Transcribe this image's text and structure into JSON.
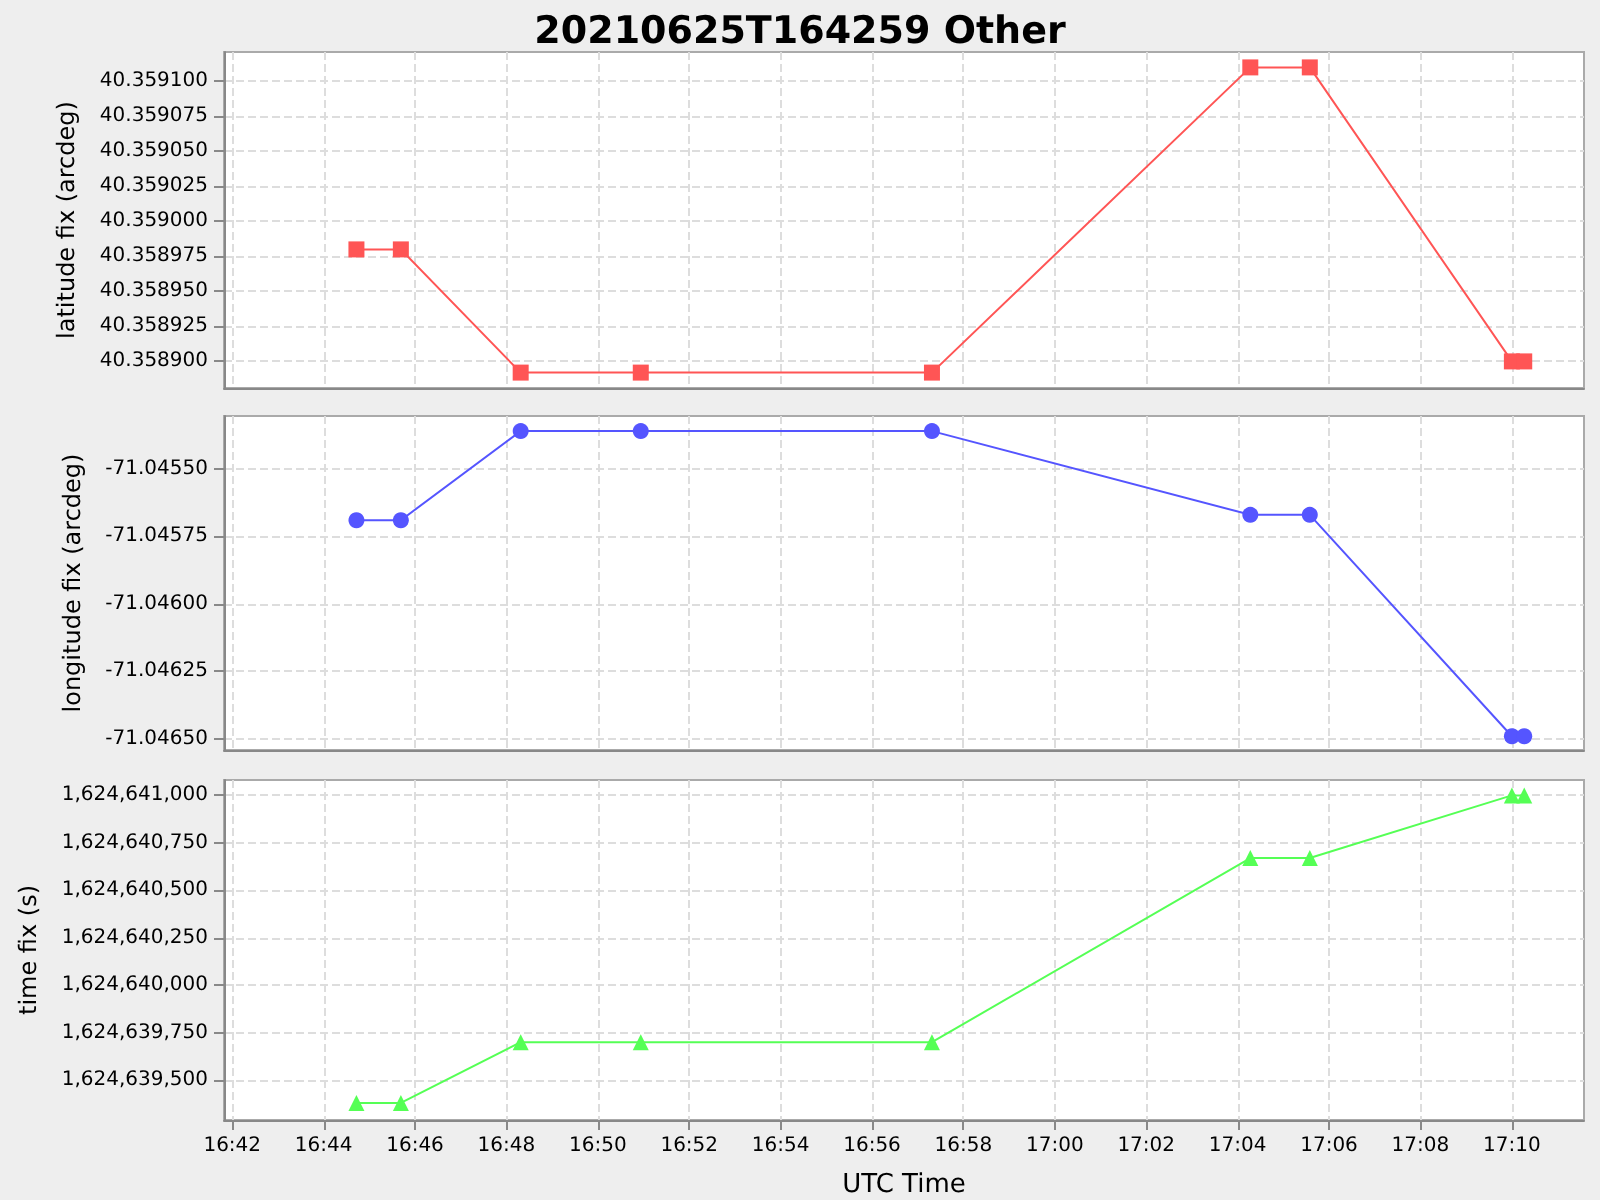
{
  "chart_data": [
    {
      "type": "line",
      "title": "20210625T164259 Other",
      "ylabel": "latitude fix (arcdeg)",
      "x": [
        16.7453,
        16.7615,
        16.8052,
        16.849,
        16.9552,
        17.0713,
        17.093,
        17.1667,
        17.1712
      ],
      "series": [
        {
          "color": "#ff5555",
          "values": [
            40.35898,
            40.35898,
            40.358892,
            40.358892,
            40.358892,
            40.35911,
            40.35911,
            40.3589,
            40.3589
          ]
        }
      ],
      "xlim": [
        16.697,
        17.193
      ],
      "xticks": [
        {
          "value": 16.7,
          "label": null
        },
        {
          "value": 16.733333,
          "label": null
        },
        {
          "value": 16.766667,
          "label": null
        },
        {
          "value": 16.8,
          "label": null
        },
        {
          "value": 16.833333,
          "label": null
        },
        {
          "value": 16.866667,
          "label": null
        },
        {
          "value": 16.9,
          "label": null
        },
        {
          "value": 16.933333,
          "label": null
        },
        {
          "value": 16.966667,
          "label": null
        },
        {
          "value": 17,
          "label": null
        },
        {
          "value": 17.033333,
          "label": null
        },
        {
          "value": 17.066667,
          "label": null
        },
        {
          "value": 17.1,
          "label": null
        },
        {
          "value": 17.133333,
          "label": null
        },
        {
          "value": 17.166667,
          "label": null
        }
      ],
      "ylim": [
        40.358881,
        40.359121
      ],
      "yticks": [
        {
          "value": 40.3589,
          "label": "40.358900"
        },
        {
          "value": 40.358925,
          "label": "40.358925"
        },
        {
          "value": 40.35895,
          "label": "40.358950"
        },
        {
          "value": 40.358975,
          "label": "40.358975"
        },
        {
          "value": 40.359,
          "label": "40.359000"
        },
        {
          "value": 40.359025,
          "label": "40.359025"
        },
        {
          "value": 40.35905,
          "label": "40.359050"
        },
        {
          "value": 40.359075,
          "label": "40.359075"
        },
        {
          "value": 40.3591,
          "label": "40.359100"
        }
      ],
      "tick_labels": "y",
      "grid": true,
      "marker": "square",
      "line_style": "solid"
    },
    {
      "type": "line",
      "ylabel": "longitude fix (arcdeg)",
      "x": [
        16.7453,
        16.7615,
        16.8052,
        16.849,
        16.9552,
        17.0713,
        17.093,
        17.1667,
        17.1712
      ],
      "series": [
        {
          "color": "#5555ff",
          "values": [
            -71.04569,
            -71.04569,
            -71.04536,
            -71.04536,
            -71.04536,
            -71.04567,
            -71.04567,
            -71.04649,
            -71.04649
          ]
        }
      ],
      "xlim": [
        16.697,
        17.193
      ],
      "xticks": [
        {
          "value": 16.7,
          "label": null
        },
        {
          "value": 16.733333,
          "label": null
        },
        {
          "value": 16.766667,
          "label": null
        },
        {
          "value": 16.8,
          "label": null
        },
        {
          "value": 16.833333,
          "label": null
        },
        {
          "value": 16.866667,
          "label": null
        },
        {
          "value": 16.9,
          "label": null
        },
        {
          "value": 16.933333,
          "label": null
        },
        {
          "value": 16.966667,
          "label": null
        },
        {
          "value": 17,
          "label": null
        },
        {
          "value": 17.033333,
          "label": null
        },
        {
          "value": 17.066667,
          "label": null
        },
        {
          "value": 17.1,
          "label": null
        },
        {
          "value": 17.133333,
          "label": null
        },
        {
          "value": 17.166667,
          "label": null
        }
      ],
      "ylim": [
        -71.046541,
        -71.045304
      ],
      "yticks": [
        {
          "value": -71.0465,
          "label": "-71.04650"
        },
        {
          "value": -71.04625,
          "label": "-71.04625"
        },
        {
          "value": -71.046,
          "label": "-71.04600"
        },
        {
          "value": -71.04575,
          "label": "-71.04575"
        },
        {
          "value": -71.0455,
          "label": "-71.04550"
        }
      ],
      "tick_labels": "y",
      "grid": true,
      "marker": "circle",
      "line_style": "solid"
    },
    {
      "type": "line",
      "ylabel": "time fix (s)",
      "xlabel": "UTC Time",
      "x": [
        16.7453,
        16.7615,
        16.8052,
        16.849,
        16.9552,
        17.0713,
        17.093,
        17.1667,
        17.1712
      ],
      "series": [
        {
          "color": "#55ff55",
          "values": [
            1624639380,
            1624639380,
            1624639700,
            1624639700,
            1624639700,
            1624640670,
            1624640670,
            1624641000,
            1624641000
          ]
        }
      ],
      "xlim": [
        16.697,
        17.193
      ],
      "xticks": [
        {
          "value": 16.7,
          "label": "16:42"
        },
        {
          "value": 16.733333,
          "label": "16:44"
        },
        {
          "value": 16.766667,
          "label": "16:46"
        },
        {
          "value": 16.8,
          "label": "16:48"
        },
        {
          "value": 16.833333,
          "label": "16:50"
        },
        {
          "value": 16.866667,
          "label": "16:52"
        },
        {
          "value": 16.9,
          "label": "16:54"
        },
        {
          "value": 16.933333,
          "label": "16:56"
        },
        {
          "value": 16.966667,
          "label": "16:58"
        },
        {
          "value": 17,
          "label": "17:00"
        },
        {
          "value": 17.033333,
          "label": "17:02"
        },
        {
          "value": 17.066667,
          "label": "17:04"
        },
        {
          "value": 17.1,
          "label": "17:06"
        },
        {
          "value": 17.133333,
          "label": "17:08"
        },
        {
          "value": 17.166667,
          "label": "17:10"
        }
      ],
      "ylim": [
        1624639290,
        1624641081
      ],
      "yticks": [
        {
          "value": 1624639500,
          "label": "1,624,639,500"
        },
        {
          "value": 1624639750,
          "label": "1,624,639,750"
        },
        {
          "value": 1624640000,
          "label": "1,624,640,000"
        },
        {
          "value": 1624640250,
          "label": "1,624,640,250"
        },
        {
          "value": 1624640500,
          "label": "1,624,640,500"
        },
        {
          "value": 1624640750,
          "label": "1,624,640,750"
        },
        {
          "value": 1624641000,
          "label": "1,624,641,000"
        }
      ],
      "grid": true,
      "marker": "triangle",
      "line_style": "solid"
    }
  ]
}
